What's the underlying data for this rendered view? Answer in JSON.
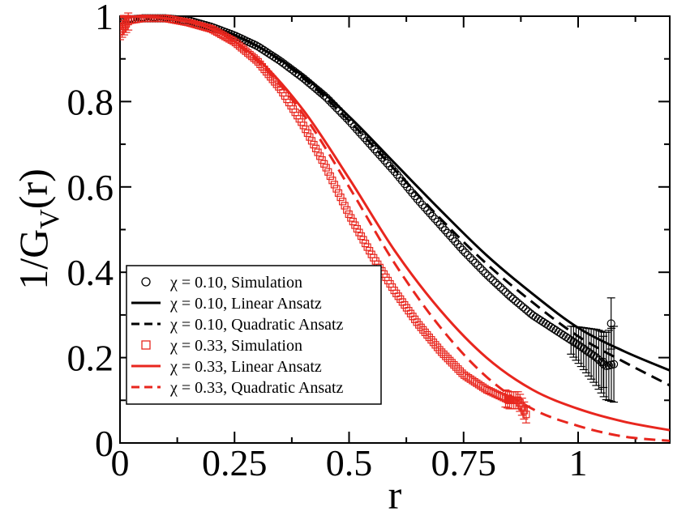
{
  "chart_data": {
    "type": "line",
    "title": "",
    "xlabel": "r",
    "ylabel_main": "1/G",
    "ylabel_sub": "V",
    "ylabel_tail": "(r)",
    "xlim": [
      0,
      1.2
    ],
    "ylim": [
      0,
      1.0
    ],
    "x_ticks": [
      0,
      0.25,
      0.5,
      0.75,
      1
    ],
    "x_tick_labels": [
      "0",
      "0.25",
      "0.5",
      "0.75",
      "1"
    ],
    "y_ticks": [
      0,
      0.2,
      0.4,
      0.6,
      0.8,
      1
    ],
    "y_tick_labels": [
      "0",
      "0.2",
      "0.4",
      "0.6",
      "0.8",
      "1"
    ],
    "legend_position": "bottom-left",
    "series": [
      {
        "name": "χ = 0.10, Simulation",
        "kind": "markers",
        "marker": "circle",
        "color": "#000000",
        "x": [
          0.0,
          0.05,
          0.1,
          0.15,
          0.2,
          0.25,
          0.3,
          0.35,
          0.4,
          0.45,
          0.5,
          0.55,
          0.6,
          0.65,
          0.7,
          0.75,
          0.8,
          0.85,
          0.9,
          0.95,
          1.0,
          1.04,
          1.06,
          1.08
        ],
        "y": [
          0.99,
          0.995,
          0.995,
          0.99,
          0.975,
          0.955,
          0.93,
          0.895,
          0.855,
          0.81,
          0.755,
          0.695,
          0.635,
          0.57,
          0.51,
          0.45,
          0.395,
          0.345,
          0.3,
          0.265,
          0.23,
          0.2,
          0.18,
          0.185
        ],
        "outliers": [
          {
            "x": 1.072,
            "y": 0.28
          },
          {
            "x": 1.055,
            "y": 0.19
          }
        ]
      },
      {
        "name": "χ = 0.10, Linear Ansatz",
        "kind": "line",
        "dash": "solid",
        "color": "#000000",
        "x": [
          0.0,
          0.1,
          0.2,
          0.3,
          0.4,
          0.5,
          0.6,
          0.7,
          0.8,
          0.9,
          1.0,
          1.1,
          1.2
        ],
        "y": [
          1.0,
          0.995,
          0.975,
          0.93,
          0.86,
          0.765,
          0.655,
          0.545,
          0.44,
          0.35,
          0.27,
          0.215,
          0.17
        ]
      },
      {
        "name": "χ = 0.10, Quadratic Ansatz",
        "kind": "line",
        "dash": "dashed",
        "color": "#000000",
        "x": [
          0.0,
          0.1,
          0.2,
          0.3,
          0.4,
          0.5,
          0.6,
          0.7,
          0.8,
          0.9,
          1.0,
          1.1,
          1.2
        ],
        "y": [
          1.0,
          0.995,
          0.975,
          0.93,
          0.855,
          0.755,
          0.64,
          0.525,
          0.42,
          0.33,
          0.25,
          0.19,
          0.135
        ]
      },
      {
        "name": "χ = 0.33, Simulation",
        "kind": "markers",
        "marker": "square",
        "color": "#e8261e",
        "x": [
          0.0,
          0.02,
          0.05,
          0.1,
          0.15,
          0.2,
          0.25,
          0.3,
          0.35,
          0.4,
          0.45,
          0.5,
          0.55,
          0.6,
          0.65,
          0.7,
          0.75,
          0.8,
          0.85,
          0.87,
          0.88,
          0.89
        ],
        "y": [
          0.965,
          0.99,
          0.995,
          0.995,
          0.985,
          0.97,
          0.94,
          0.895,
          0.83,
          0.745,
          0.645,
          0.535,
          0.44,
          0.355,
          0.28,
          0.215,
          0.16,
          0.125,
          0.1,
          0.1,
          0.08,
          0.06
        ]
      },
      {
        "name": "χ = 0.33, Linear Ansatz",
        "kind": "line",
        "dash": "solid",
        "color": "#e8261e",
        "x": [
          0.0,
          0.1,
          0.2,
          0.3,
          0.4,
          0.5,
          0.6,
          0.7,
          0.8,
          0.9,
          1.0,
          1.1,
          1.2
        ],
        "y": [
          1.0,
          0.995,
          0.97,
          0.9,
          0.78,
          0.62,
          0.45,
          0.31,
          0.2,
          0.125,
          0.08,
          0.05,
          0.03
        ]
      },
      {
        "name": "χ = 0.33, Quadratic Ansatz",
        "kind": "line",
        "dash": "dashed",
        "color": "#e8261e",
        "x": [
          0.0,
          0.1,
          0.2,
          0.3,
          0.4,
          0.5,
          0.6,
          0.7,
          0.8,
          0.9,
          1.0,
          1.1,
          1.2
        ],
        "y": [
          1.0,
          0.995,
          0.97,
          0.895,
          0.77,
          0.6,
          0.42,
          0.27,
          0.155,
          0.08,
          0.04,
          0.015,
          0.005
        ]
      }
    ]
  }
}
